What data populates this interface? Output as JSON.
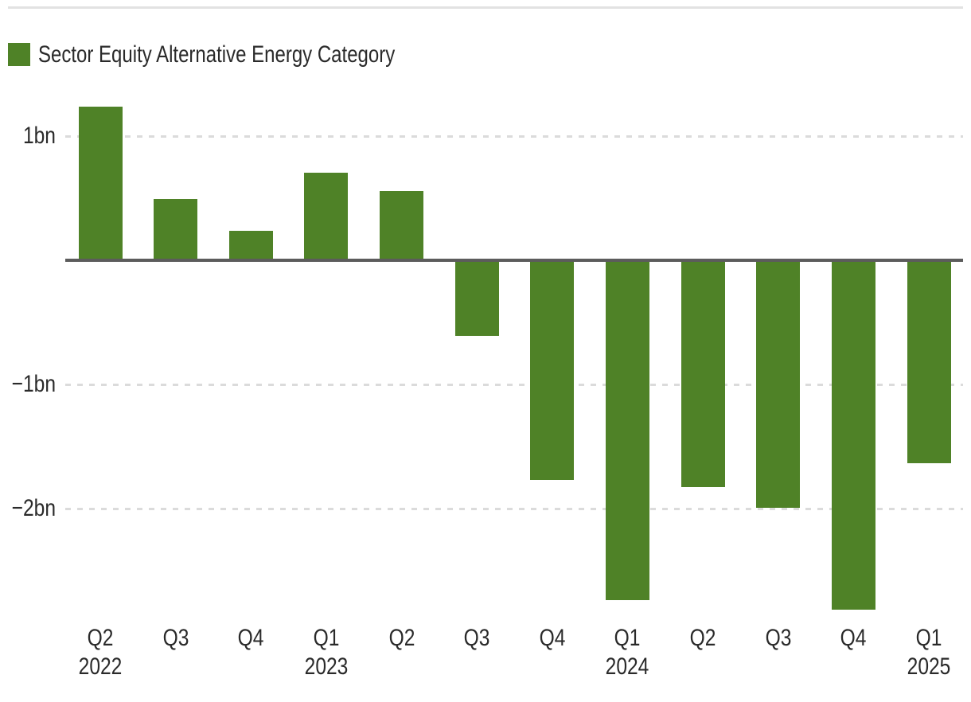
{
  "legend": {
    "label": "Sector Equity Alternative Energy Category",
    "color": "#4f8227"
  },
  "chart_data": {
    "type": "bar",
    "title": "",
    "series_name": "Sector Equity Alternative Energy Category",
    "unit": "bn",
    "categories": [
      "Q2 2022",
      "Q3 2022",
      "Q4 2022",
      "Q1 2023",
      "Q2 2023",
      "Q3 2023",
      "Q4 2023",
      "Q1 2024",
      "Q2 2024",
      "Q3 2024",
      "Q4 2024",
      "Q1 2025"
    ],
    "x_tick_labels": [
      {
        "quarter": "Q2",
        "year": "2022"
      },
      {
        "quarter": "Q3",
        "year": ""
      },
      {
        "quarter": "Q4",
        "year": ""
      },
      {
        "quarter": "Q1",
        "year": "2023"
      },
      {
        "quarter": "Q2",
        "year": ""
      },
      {
        "quarter": "Q3",
        "year": ""
      },
      {
        "quarter": "Q4",
        "year": ""
      },
      {
        "quarter": "Q1",
        "year": "2024"
      },
      {
        "quarter": "Q2",
        "year": ""
      },
      {
        "quarter": "Q3",
        "year": ""
      },
      {
        "quarter": "Q4",
        "year": ""
      },
      {
        "quarter": "Q1",
        "year": "2025"
      }
    ],
    "values": [
      1.23,
      0.49,
      0.23,
      0.7,
      0.55,
      -0.6,
      -1.76,
      -2.73,
      -1.82,
      -1.99,
      -2.81,
      -1.63
    ],
    "y_ticks": [
      {
        "label": "1bn",
        "value": 1
      },
      {
        "label": "−1bn",
        "value": -1
      },
      {
        "label": "−2bn",
        "value": -2
      }
    ],
    "ylim": [
      -2.9,
      1.3
    ],
    "bar_color": "#4f8227",
    "grid": "dashed-horizontal",
    "legend_position": "top-left"
  }
}
